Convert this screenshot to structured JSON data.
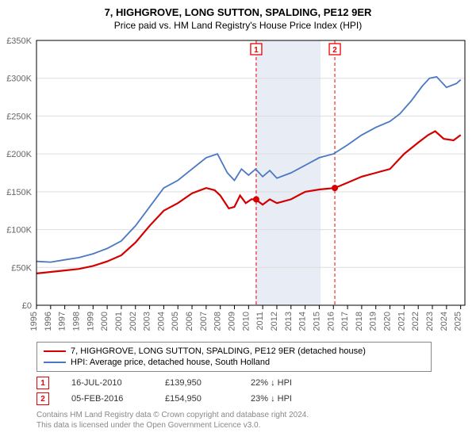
{
  "title": "7, HIGHGROVE, LONG SUTTON, SPALDING, PE12 9ER",
  "subtitle": "Price paid vs. HM Land Registry's House Price Index (HPI)",
  "chart": {
    "type": "line",
    "background_color": "#ffffff",
    "grid_color": "#dddddd",
    "shade_color": "#e8ecf4",
    "axis_fontsize": 11,
    "x_years": [
      "1995",
      "1996",
      "1997",
      "1998",
      "1999",
      "2000",
      "2001",
      "2002",
      "2003",
      "2004",
      "2005",
      "2006",
      "2007",
      "2008",
      "2009",
      "2010",
      "2011",
      "2012",
      "2013",
      "2014",
      "2015",
      "2016",
      "2017",
      "2018",
      "2019",
      "2020",
      "2021",
      "2022",
      "2023",
      "2024",
      "2025"
    ],
    "y_ticks": [
      0,
      50000,
      100000,
      150000,
      200000,
      250000,
      300000,
      350000
    ],
    "y_tick_labels": [
      "£0",
      "£50K",
      "£100K",
      "£150K",
      "£200K",
      "£250K",
      "£300K",
      "£350K"
    ],
    "ylim": [
      0,
      350000
    ],
    "xlim": [
      1995,
      2025.3
    ],
    "shade_years": [
      2010.5,
      2015.1
    ],
    "series": [
      {
        "name": "property",
        "color": "#d40000",
        "line_width": 2.2,
        "label": "7, HIGHGROVE, LONG SUTTON, SPALDING, PE12 9ER (detached house)",
        "data": [
          [
            1995,
            42000
          ],
          [
            1996,
            44000
          ],
          [
            1997,
            46000
          ],
          [
            1998,
            48000
          ],
          [
            1999,
            52000
          ],
          [
            2000,
            58000
          ],
          [
            2001,
            66000
          ],
          [
            2002,
            83000
          ],
          [
            2003,
            105000
          ],
          [
            2004,
            125000
          ],
          [
            2005,
            135000
          ],
          [
            2006,
            148000
          ],
          [
            2007,
            155000
          ],
          [
            2007.6,
            152000
          ],
          [
            2008,
            145000
          ],
          [
            2008.6,
            128000
          ],
          [
            2009,
            130000
          ],
          [
            2009.4,
            145000
          ],
          [
            2009.8,
            135000
          ],
          [
            2010.2,
            140000
          ],
          [
            2010.5,
            139950
          ],
          [
            2011,
            133000
          ],
          [
            2011.5,
            140000
          ],
          [
            2012,
            135000
          ],
          [
            2013,
            140000
          ],
          [
            2014,
            150000
          ],
          [
            2015,
            153000
          ],
          [
            2016.1,
            154950
          ],
          [
            2017,
            162000
          ],
          [
            2018,
            170000
          ],
          [
            2019,
            175000
          ],
          [
            2020,
            180000
          ],
          [
            2021,
            200000
          ],
          [
            2022,
            215000
          ],
          [
            2022.7,
            225000
          ],
          [
            2023.2,
            230000
          ],
          [
            2023.8,
            220000
          ],
          [
            2024.5,
            218000
          ],
          [
            2025,
            225000
          ]
        ]
      },
      {
        "name": "hpi",
        "color": "#4a78c4",
        "line_width": 1.8,
        "label": "HPI: Average price, detached house, South Holland",
        "data": [
          [
            1995,
            58000
          ],
          [
            1996,
            57000
          ],
          [
            1997,
            60000
          ],
          [
            1998,
            63000
          ],
          [
            1999,
            68000
          ],
          [
            2000,
            75000
          ],
          [
            2001,
            85000
          ],
          [
            2002,
            105000
          ],
          [
            2003,
            130000
          ],
          [
            2004,
            155000
          ],
          [
            2005,
            165000
          ],
          [
            2006,
            180000
          ],
          [
            2007,
            195000
          ],
          [
            2007.8,
            200000
          ],
          [
            2008.5,
            175000
          ],
          [
            2009,
            165000
          ],
          [
            2009.5,
            180000
          ],
          [
            2010,
            172000
          ],
          [
            2010.5,
            180000
          ],
          [
            2011,
            170000
          ],
          [
            2011.5,
            178000
          ],
          [
            2012,
            168000
          ],
          [
            2013,
            175000
          ],
          [
            2014,
            185000
          ],
          [
            2015,
            195000
          ],
          [
            2016,
            200000
          ],
          [
            2017,
            212000
          ],
          [
            2018,
            225000
          ],
          [
            2019,
            235000
          ],
          [
            2020,
            243000
          ],
          [
            2020.7,
            253000
          ],
          [
            2021.5,
            270000
          ],
          [
            2022.3,
            290000
          ],
          [
            2022.8,
            300000
          ],
          [
            2023.3,
            302000
          ],
          [
            2024,
            288000
          ],
          [
            2024.7,
            293000
          ],
          [
            2025,
            298000
          ]
        ]
      }
    ],
    "sale_points": [
      {
        "marker": "1",
        "year": 2010.54,
        "value": 139950,
        "color": "#d40000"
      },
      {
        "marker": "2",
        "year": 2016.1,
        "value": 154950,
        "color": "#d40000"
      }
    ]
  },
  "sales": [
    {
      "marker": "1",
      "date": "16-JUL-2010",
      "price": "£139,950",
      "delta_pct": "22%",
      "delta_dir": "↓",
      "delta_ref": "HPI"
    },
    {
      "marker": "2",
      "date": "05-FEB-2016",
      "price": "£154,950",
      "delta_pct": "23%",
      "delta_dir": "↓",
      "delta_ref": "HPI"
    }
  ],
  "footer_line1": "Contains HM Land Registry data © Crown copyright and database right 2024.",
  "footer_line2": "This data is licensed under the Open Government Licence v3.0."
}
